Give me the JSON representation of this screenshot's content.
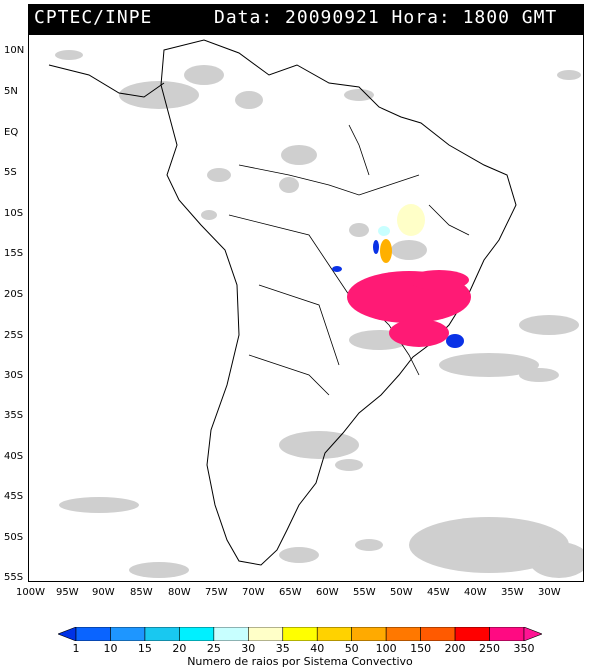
{
  "header": {
    "source": "CPTEC/INPE",
    "datetime": "Data: 20090921 Hora: 1800 GMT"
  },
  "axes": {
    "lat_labels": [
      "10N",
      "5N",
      "EQ",
      "5S",
      "10S",
      "15S",
      "20S",
      "25S",
      "30S",
      "35S",
      "40S",
      "45S",
      "50S",
      "55S"
    ],
    "lon_labels": [
      "100W",
      "95W",
      "90W",
      "85W",
      "80W",
      "75W",
      "70W",
      "65W",
      "60W",
      "55W",
      "50W",
      "45W",
      "40W",
      "35W",
      "30W"
    ]
  },
  "legend": {
    "title": "Numero de raios por Sistema Convectivo",
    "bins": [
      "1",
      "10",
      "15",
      "20",
      "25",
      "30",
      "35",
      "40",
      "50",
      "100",
      "150",
      "200",
      "250",
      "350"
    ],
    "colors": [
      "#0032e6",
      "#0a64ff",
      "#1e96ff",
      "#19c8f0",
      "#00f0ff",
      "#c8ffff",
      "#ffffc8",
      "#ffff00",
      "#ffd200",
      "#ffaa00",
      "#ff7800",
      "#ff5a00",
      "#ff0000",
      "#ff0a82",
      "#ff1493"
    ]
  },
  "map": {
    "colors": {
      "cloud": "#c8c8c8",
      "coast": "#000000",
      "high_lightning": "#ff1a75",
      "low_lightning": "#0a32e6",
      "mid_orange": "#ffb000",
      "pale_yellow": "#ffffc8"
    }
  }
}
